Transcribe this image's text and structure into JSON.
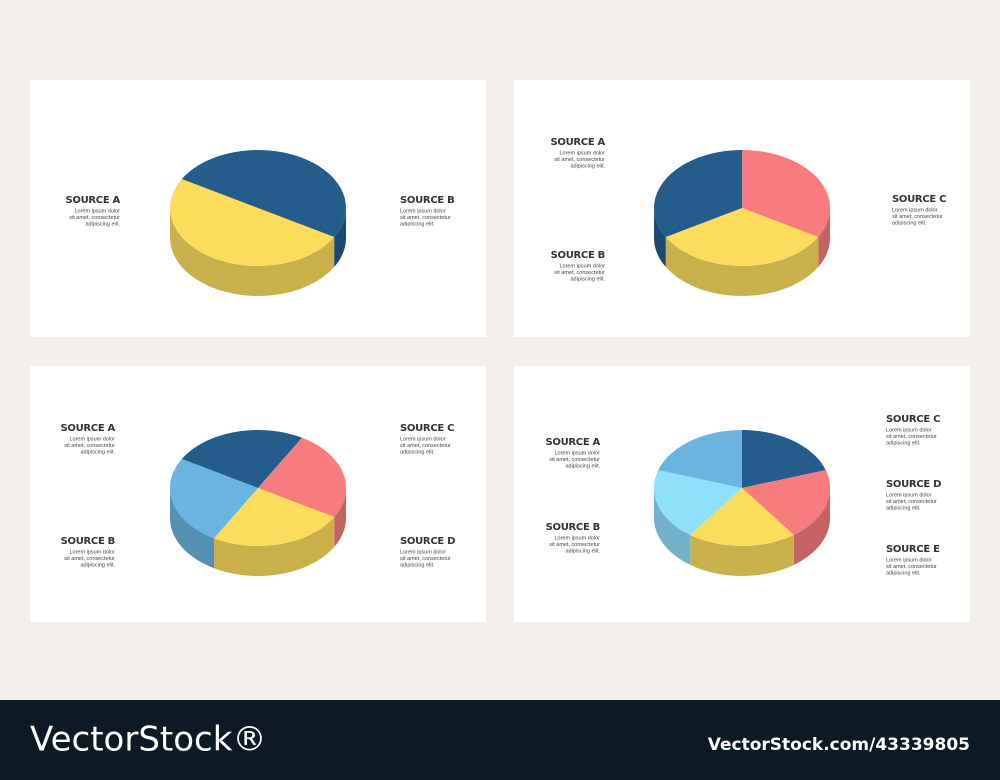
{
  "chart_data": [
    {
      "type": "pie",
      "categories": [
        "SOURCE A",
        "SOURCE B"
      ],
      "values": [
        50,
        50
      ],
      "colors": [
        "#fddc5c",
        "#245d8c"
      ],
      "notes": [
        [
          "Lorem ipsum dolor",
          "sit amet, consectetur",
          "adipiscing elit."
        ],
        [
          "Lorem ipsum dolor",
          "sit amet, consectetur",
          "adipiscing elit."
        ]
      ]
    },
    {
      "type": "pie",
      "categories": [
        "SOURCE C",
        "SOURCE B",
        "SOURCE A"
      ],
      "values": [
        33.3,
        33.3,
        33.3
      ],
      "colors": [
        "#f87b7d",
        "#fddc5c",
        "#245d8c"
      ],
      "notes": [
        [
          "Lorem ipsum dolor",
          "sit amet, consectetur",
          "adipiscing elit."
        ],
        [
          "Lorem ipsum dolor",
          "sit amet, consectetur",
          "adipiscing elit."
        ],
        [
          "Lorem ipsum dolor",
          "sit amet, consectetur",
          "adipiscing elit."
        ]
      ]
    },
    {
      "type": "pie",
      "categories": [
        "SOURCE A",
        "SOURCE C",
        "SOURCE D",
        "SOURCE B"
      ],
      "values": [
        25,
        25,
        25,
        25
      ],
      "colors": [
        "#245d8c",
        "#f87b7d",
        "#fddc5c",
        "#6ab4df"
      ],
      "notes": [
        [
          "Lorem ipsum dolor",
          "sit amet, consectetur",
          "adipiscing elit."
        ],
        [
          "Lorem ipsum dolor",
          "sit amet, consectetur",
          "adipiscing elit."
        ],
        [
          "Lorem ipsum dolor",
          "sit amet, consectetur",
          "adipiscing elit."
        ],
        [
          "Lorem ipsum dolor",
          "sit amet, consectetur",
          "adipiscing elit."
        ]
      ]
    },
    {
      "type": "pie",
      "categories": [
        "SOURCE C",
        "SOURCE D",
        "SOURCE E",
        "SOURCE B",
        "SOURCE A"
      ],
      "values": [
        20,
        20,
        20,
        20,
        20
      ],
      "colors": [
        "#245d8c",
        "#f87b7d",
        "#fddc5c",
        "#8fe0fb",
        "#6ab4df"
      ],
      "notes": [
        [
          "Lorem ipsum dolor",
          "sit amet, consectetur",
          "adipiscing elit."
        ],
        [
          "Lorem ipsum dolor",
          "sit amet, consectetur",
          "adipiscing elit."
        ],
        [
          "Lorem ipsum dolor",
          "sit amet, consectetur",
          "adipiscing elit."
        ],
        [
          "Lorem ipsum dolor",
          "sit amet, consectetur",
          "adipiscing elit."
        ],
        [
          "Lorem ipsum dolor",
          "sit amet, consectetur",
          "adipiscing elit."
        ]
      ]
    }
  ],
  "footer": {
    "brand": "VectorStock®",
    "site": "VectorStock.com/43339805"
  }
}
